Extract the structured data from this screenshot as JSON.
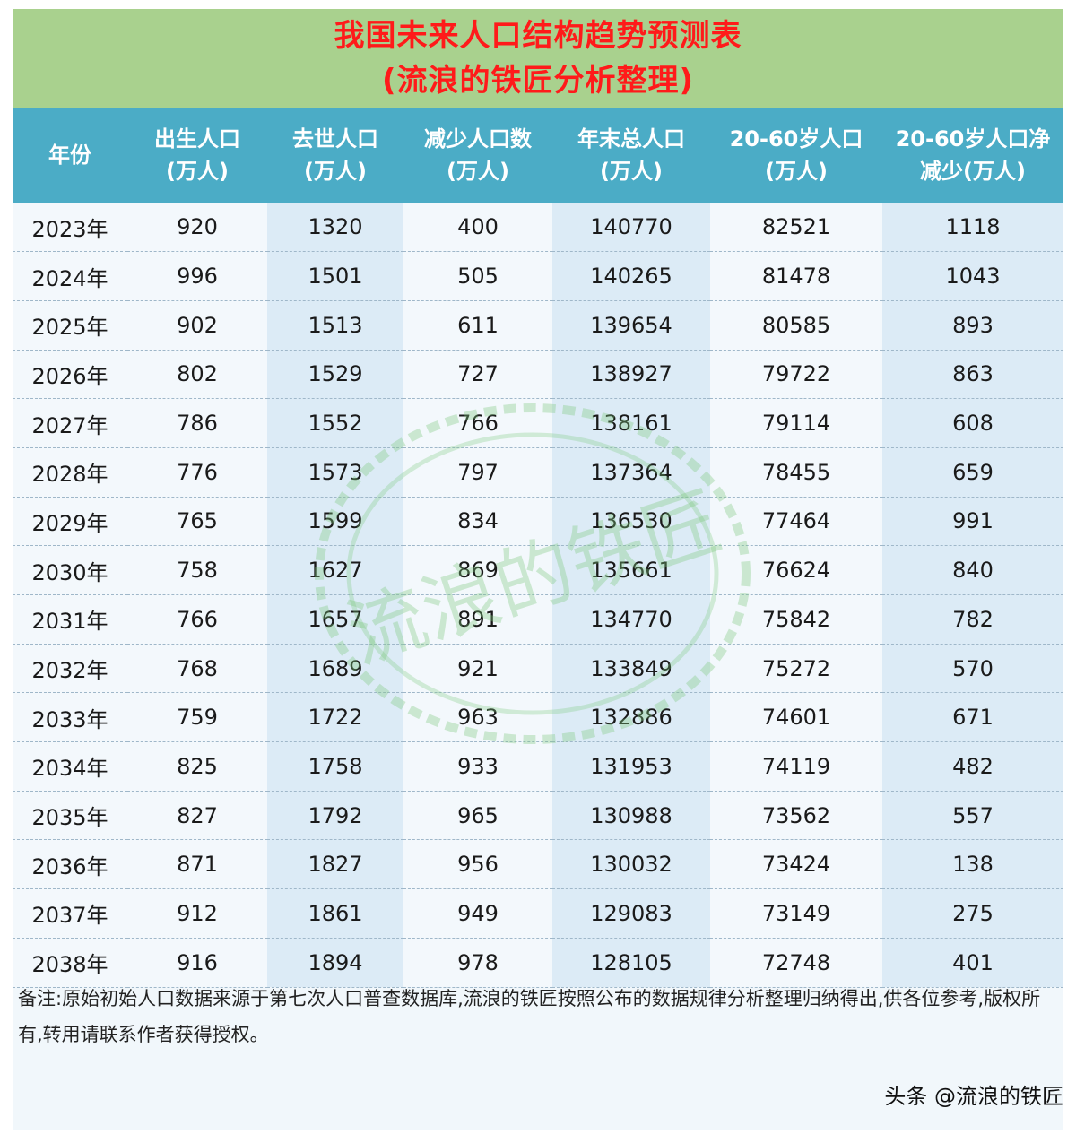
{
  "title": {
    "line1": "我国未来人口结构趋势预测表",
    "line2": "(流浪的铁匠分析整理)"
  },
  "headers": [
    {
      "l1": "年份",
      "l2": ""
    },
    {
      "l1": "出生人口",
      "l2": "(万人)"
    },
    {
      "l1": "去世人口",
      "l2": "(万人)"
    },
    {
      "l1": "减少人口数",
      "l2": "(万人)"
    },
    {
      "l1": "年末总人口",
      "l2": "(万人)"
    },
    {
      "l1": "20-60岁人口",
      "l2": "(万人)"
    },
    {
      "l1": "20-60岁人口净",
      "l2": "减少(万人)"
    }
  ],
  "rows": [
    [
      "2023年",
      "920",
      "1320",
      "400",
      "140770",
      "82521",
      "1118"
    ],
    [
      "2024年",
      "996",
      "1501",
      "505",
      "140265",
      "81478",
      "1043"
    ],
    [
      "2025年",
      "902",
      "1513",
      "611",
      "139654",
      "80585",
      "893"
    ],
    [
      "2026年",
      "802",
      "1529",
      "727",
      "138927",
      "79722",
      "863"
    ],
    [
      "2027年",
      "786",
      "1552",
      "766",
      "138161",
      "79114",
      "608"
    ],
    [
      "2028年",
      "776",
      "1573",
      "797",
      "137364",
      "78455",
      "659"
    ],
    [
      "2029年",
      "765",
      "1599",
      "834",
      "136530",
      "77464",
      "991"
    ],
    [
      "2030年",
      "758",
      "1627",
      "869",
      "135661",
      "76624",
      "840"
    ],
    [
      "2031年",
      "766",
      "1657",
      "891",
      "134770",
      "75842",
      "782"
    ],
    [
      "2032年",
      "768",
      "1689",
      "921",
      "133849",
      "75272",
      "570"
    ],
    [
      "2033年",
      "759",
      "1722",
      "963",
      "132886",
      "74601",
      "671"
    ],
    [
      "2034年",
      "825",
      "1758",
      "933",
      "131953",
      "74119",
      "482"
    ],
    [
      "2035年",
      "827",
      "1792",
      "965",
      "130988",
      "73562",
      "557"
    ],
    [
      "2036年",
      "871",
      "1827",
      "956",
      "130032",
      "73424",
      "138"
    ],
    [
      "2037年",
      "912",
      "1861",
      "949",
      "129083",
      "73149",
      "275"
    ],
    [
      "2038年",
      "916",
      "1894",
      "978",
      "128105",
      "72748",
      "401"
    ]
  ],
  "note": "备注:原始初始人口数据来源于第七次人口普查数据库,流浪的铁匠按照公布的数据规律分析整理归纳得出,供各位参考,版权所有,转用请联系作者获得授权。",
  "watermark": "流浪的铁匠",
  "credit": "头条 @流浪的铁匠",
  "colors": {
    "title_band": "#a9d18e",
    "title_text": "#ff1a1a",
    "header_bg": "#4bacc6",
    "stripe": "#dcebf6"
  }
}
